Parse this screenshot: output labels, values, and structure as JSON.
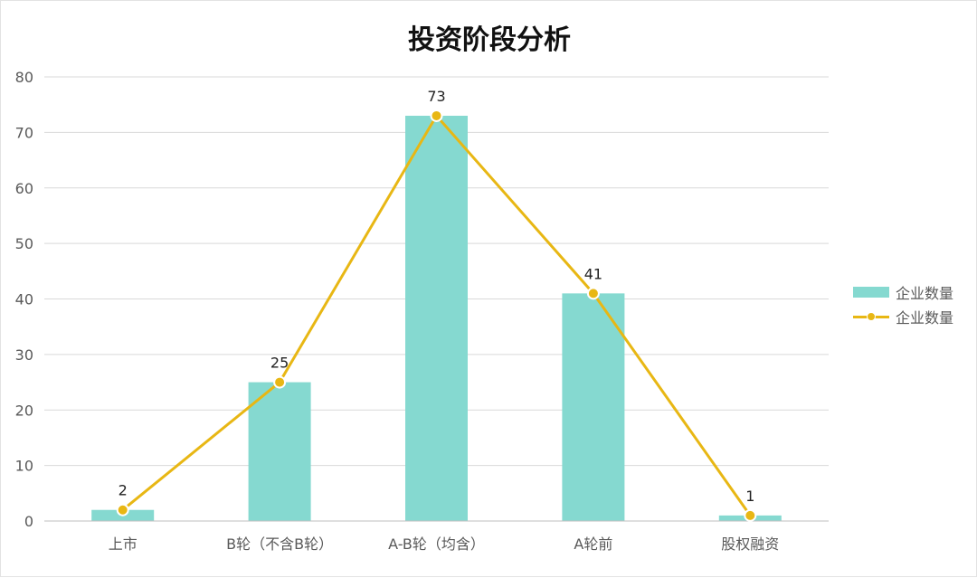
{
  "colors": {
    "bar": "#85d9d0",
    "line": "#e8b714",
    "grid": "#d9d9d9",
    "axis_text": "#595959"
  },
  "chart_data": {
    "type": "bar",
    "title": "投资阶段分析",
    "categories": [
      "上市",
      "B轮（不含B轮）",
      "A-B轮（均含）",
      "A轮前",
      "股权融资"
    ],
    "series": [
      {
        "name": "企业数量",
        "type": "bar",
        "values": [
          2,
          25,
          73,
          41,
          1
        ]
      },
      {
        "name": "企业数量",
        "type": "line",
        "values": [
          2,
          25,
          73,
          41,
          1
        ]
      }
    ],
    "data_labels": [
      "2",
      "25",
      "73",
      "41",
      "1"
    ],
    "ylim": [
      0,
      80
    ],
    "yticks": [
      0,
      10,
      20,
      30,
      40,
      50,
      60,
      70,
      80
    ],
    "grid": true,
    "legend_position": "right"
  }
}
